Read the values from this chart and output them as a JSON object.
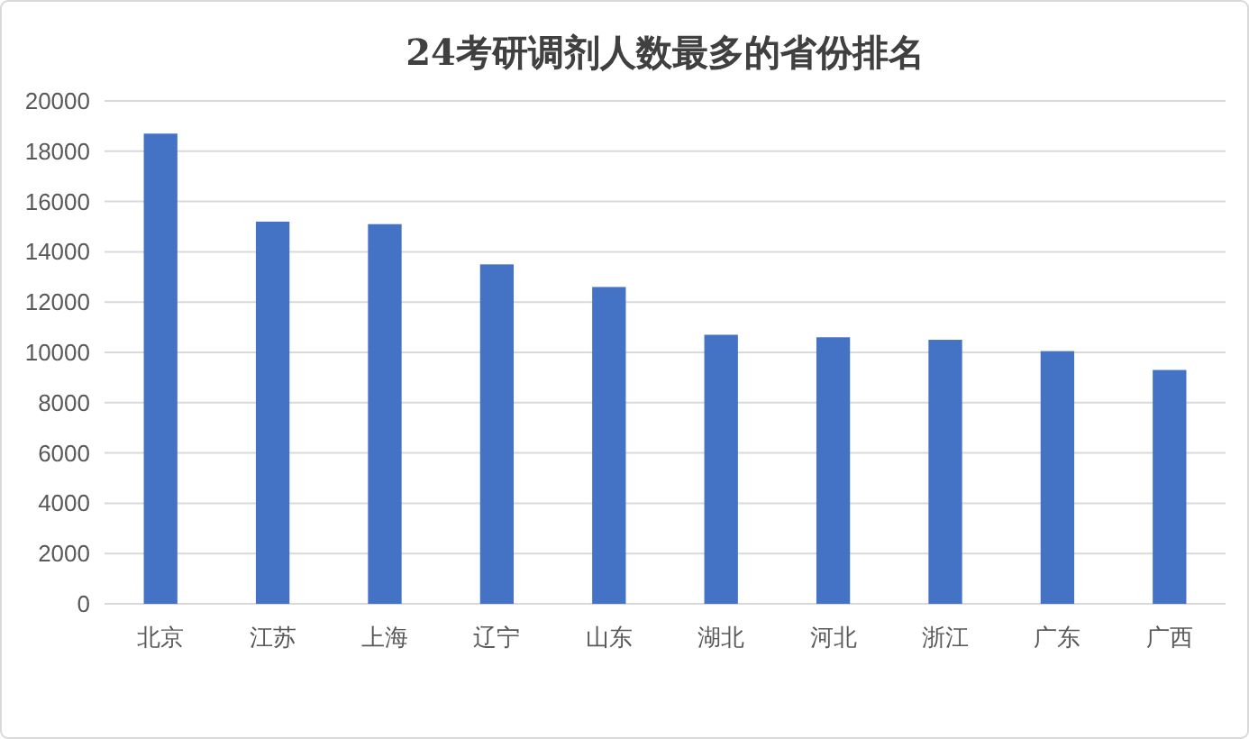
{
  "chart_data": {
    "type": "bar",
    "title": "24考研调剂人数最多的省份排名",
    "categories": [
      "北京",
      "江苏",
      "上海",
      "辽宁",
      "山东",
      "湖北",
      "河北",
      "浙江",
      "广东",
      "广西"
    ],
    "values": [
      18700,
      15200,
      15100,
      13500,
      12600,
      10700,
      10600,
      10500,
      10050,
      9300
    ],
    "color": "#4472c4",
    "ylim": [
      0,
      20000
    ],
    "yticks": [
      0,
      2000,
      4000,
      6000,
      8000,
      10000,
      12000,
      14000,
      16000,
      18000,
      20000
    ],
    "grid": "y"
  }
}
